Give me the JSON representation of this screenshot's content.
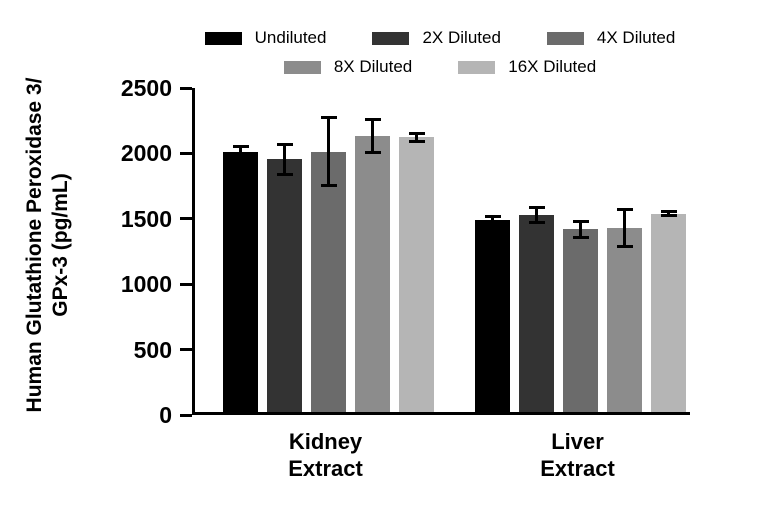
{
  "chart_data": {
    "type": "bar",
    "title": "",
    "ylabel": "Human Glutathione Peroxidase 3/\nGPx-3 (pg/mL)",
    "xlabel": "",
    "ylim": [
      0,
      2500
    ],
    "yticks": [
      0,
      500,
      1000,
      1500,
      2000,
      2500
    ],
    "grid": false,
    "legend_position": "top",
    "legend_rows": [
      [
        0,
        1,
        2
      ],
      [
        3,
        4
      ]
    ],
    "categories": [
      "Kidney\nExtract",
      "Liver\nExtract"
    ],
    "series": [
      {
        "name": "Undiluted",
        "color": "#000000",
        "values": [
          2010,
          1480
        ],
        "errors": [
          35,
          25
        ]
      },
      {
        "name": "2X Diluted",
        "color": "#333333",
        "values": [
          1950,
          1520
        ],
        "errors": [
          115,
          55
        ]
      },
      {
        "name": "4X Diluted",
        "color": "#6b6b6b",
        "values": [
          2010,
          1410
        ],
        "errors": [
          260,
          60
        ]
      },
      {
        "name": "8X Diluted",
        "color": "#8c8c8c",
        "values": [
          2130,
          1420
        ],
        "errors": [
          130,
          145
        ]
      },
      {
        "name": "16X Diluted",
        "color": "#b5b5b5",
        "values": [
          2120,
          1530
        ],
        "errors": [
          30,
          15
        ]
      }
    ]
  },
  "layout_values": {
    "group_lefts": [
      28,
      280
    ],
    "group_width": 211
  }
}
